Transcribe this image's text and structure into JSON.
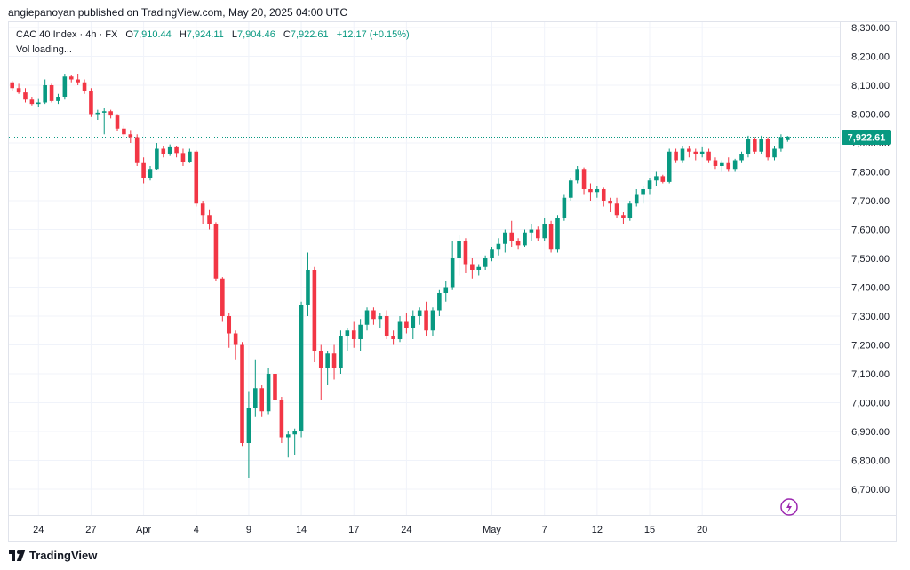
{
  "header": {
    "byline": "angiepanoyan published on TradingView.com, May 20, 2025 04:00 UTC"
  },
  "legend": {
    "symbol": "CAC 40 Index · 4h · FX",
    "open_label": "O",
    "open": "7,910.44",
    "high_label": "H",
    "high": "7,924.11",
    "low_label": "L",
    "low": "7,904.46",
    "close_label": "C",
    "close": "7,922.61",
    "change": "+12.17 (+0.15%)",
    "volume": "Vol loading..."
  },
  "footer": {
    "brand": "TradingView"
  },
  "colors": {
    "up": "#089981",
    "down": "#f23645",
    "grid": "#f0f3fa",
    "text": "#131722",
    "accent": "#9c27b0"
  },
  "icons": {
    "flash": "lightning-icon",
    "logo": "tradingview-logo-icon"
  },
  "chart_data": {
    "type": "candlestick",
    "title": "CAC 40 Index · 4h · FX",
    "yaxis": {
      "ticks": [
        "8,300.00",
        "8,200.00",
        "8,100.00",
        "8,000.00",
        "7,900.00",
        "7,800.00",
        "7,700.00",
        "7,600.00",
        "7,500.00",
        "7,400.00",
        "7,300.00",
        "7,200.00",
        "7,100.00",
        "7,000.00",
        "6,900.00",
        "6,800.00",
        "6,700.00"
      ],
      "tick_values": [
        8300,
        8200,
        8100,
        8000,
        7900,
        7800,
        7700,
        7600,
        7500,
        7400,
        7300,
        7200,
        7100,
        7000,
        6900,
        6800,
        6700
      ],
      "range": [
        6640,
        8335
      ],
      "position": "right"
    },
    "xaxis": {
      "labels": [
        "24",
        "27",
        "Apr",
        "4",
        "9",
        "14",
        "17",
        "24",
        "May",
        "7",
        "12",
        "15",
        "20"
      ],
      "label_bar_index": [
        4,
        12,
        20,
        28,
        36,
        44,
        52,
        60,
        73,
        81,
        89,
        97,
        105
      ]
    },
    "last_price_label": "7,922.61",
    "last_price": 7922.61,
    "candles": [
      [
        8110,
        8115,
        8080,
        8090
      ],
      [
        8090,
        8105,
        8070,
        8075
      ],
      [
        8075,
        8090,
        8040,
        8050
      ],
      [
        8050,
        8060,
        8030,
        8035
      ],
      [
        8035,
        8055,
        8025,
        8040
      ],
      [
        8040,
        8120,
        8035,
        8100
      ],
      [
        8100,
        8105,
        8040,
        8045
      ],
      [
        8045,
        8070,
        8035,
        8060
      ],
      [
        8060,
        8140,
        8050,
        8130
      ],
      [
        8130,
        8135,
        8110,
        8120
      ],
      [
        8120,
        8140,
        8100,
        8110
      ],
      [
        8110,
        8120,
        8070,
        8080
      ],
      [
        8080,
        8090,
        7990,
        8000
      ],
      [
        8000,
        8015,
        7980,
        8005
      ],
      [
        8005,
        8020,
        7930,
        8010
      ],
      [
        8010,
        8015,
        7985,
        7995
      ],
      [
        7995,
        8000,
        7940,
        7950
      ],
      [
        7950,
        7960,
        7920,
        7930
      ],
      [
        7930,
        7945,
        7900,
        7920
      ],
      [
        7920,
        7930,
        7820,
        7830
      ],
      [
        7830,
        7850,
        7760,
        7780
      ],
      [
        7780,
        7820,
        7770,
        7810
      ],
      [
        7810,
        7900,
        7805,
        7880
      ],
      [
        7880,
        7890,
        7850,
        7860
      ],
      [
        7860,
        7895,
        7855,
        7885
      ],
      [
        7885,
        7890,
        7850,
        7865
      ],
      [
        7865,
        7880,
        7820,
        7835
      ],
      [
        7835,
        7880,
        7830,
        7870
      ],
      [
        7870,
        7875,
        7680,
        7690
      ],
      [
        7690,
        7700,
        7620,
        7650
      ],
      [
        7650,
        7670,
        7600,
        7620
      ],
      [
        7620,
        7625,
        7420,
        7430
      ],
      [
        7430,
        7435,
        7280,
        7300
      ],
      [
        7300,
        7310,
        7190,
        7240
      ],
      [
        7240,
        7250,
        7150,
        7200
      ],
      [
        7200,
        7210,
        6850,
        6860
      ],
      [
        6860,
        7040,
        6740,
        6980
      ],
      [
        6980,
        7150,
        6950,
        7050
      ],
      [
        7050,
        7060,
        6950,
        6970
      ],
      [
        6970,
        7120,
        6960,
        7100
      ],
      [
        7100,
        7160,
        6990,
        7010
      ],
      [
        7010,
        7020,
        6860,
        6880
      ],
      [
        6880,
        6900,
        6810,
        6890
      ],
      [
        6890,
        6910,
        6820,
        6900
      ],
      [
        6900,
        7350,
        6880,
        7340
      ],
      [
        7340,
        7520,
        7300,
        7460
      ],
      [
        7460,
        7470,
        7140,
        7180
      ],
      [
        7180,
        7200,
        7010,
        7120
      ],
      [
        7120,
        7180,
        7060,
        7170
      ],
      [
        7170,
        7200,
        7080,
        7120
      ],
      [
        7120,
        7250,
        7100,
        7230
      ],
      [
        7230,
        7260,
        7180,
        7250
      ],
      [
        7250,
        7280,
        7190,
        7220
      ],
      [
        7220,
        7290,
        7180,
        7270
      ],
      [
        7270,
        7330,
        7250,
        7320
      ],
      [
        7320,
        7330,
        7270,
        7290
      ],
      [
        7290,
        7310,
        7260,
        7300
      ],
      [
        7300,
        7320,
        7220,
        7230
      ],
      [
        7230,
        7250,
        7200,
        7220
      ],
      [
        7220,
        7300,
        7210,
        7280
      ],
      [
        7280,
        7310,
        7240,
        7260
      ],
      [
        7260,
        7320,
        7220,
        7300
      ],
      [
        7300,
        7330,
        7270,
        7320
      ],
      [
        7320,
        7350,
        7230,
        7250
      ],
      [
        7250,
        7330,
        7230,
        7320
      ],
      [
        7320,
        7390,
        7300,
        7380
      ],
      [
        7380,
        7420,
        7350,
        7400
      ],
      [
        7400,
        7560,
        7390,
        7500
      ],
      [
        7500,
        7580,
        7440,
        7560
      ],
      [
        7560,
        7570,
        7450,
        7480
      ],
      [
        7480,
        7500,
        7430,
        7460
      ],
      [
        7460,
        7480,
        7440,
        7470
      ],
      [
        7470,
        7510,
        7460,
        7500
      ],
      [
        7500,
        7540,
        7490,
        7530
      ],
      [
        7530,
        7570,
        7510,
        7550
      ],
      [
        7550,
        7600,
        7520,
        7590
      ],
      [
        7590,
        7630,
        7540,
        7560
      ],
      [
        7560,
        7570,
        7530,
        7545
      ],
      [
        7545,
        7600,
        7540,
        7590
      ],
      [
        7590,
        7620,
        7560,
        7600
      ],
      [
        7600,
        7610,
        7560,
        7570
      ],
      [
        7570,
        7640,
        7560,
        7620
      ],
      [
        7620,
        7630,
        7520,
        7530
      ],
      [
        7530,
        7650,
        7520,
        7640
      ],
      [
        7640,
        7720,
        7630,
        7710
      ],
      [
        7710,
        7780,
        7700,
        7770
      ],
      [
        7770,
        7820,
        7760,
        7810
      ],
      [
        7810,
        7815,
        7720,
        7740
      ],
      [
        7740,
        7760,
        7700,
        7730
      ],
      [
        7730,
        7750,
        7710,
        7740
      ],
      [
        7740,
        7745,
        7680,
        7700
      ],
      [
        7700,
        7710,
        7660,
        7690
      ],
      [
        7690,
        7710,
        7640,
        7650
      ],
      [
        7650,
        7660,
        7620,
        7640
      ],
      [
        7640,
        7700,
        7630,
        7690
      ],
      [
        7690,
        7740,
        7680,
        7720
      ],
      [
        7720,
        7750,
        7690,
        7740
      ],
      [
        7740,
        7780,
        7720,
        7770
      ],
      [
        7770,
        7800,
        7750,
        7785
      ],
      [
        7785,
        7790,
        7760,
        7765
      ],
      [
        7765,
        7880,
        7760,
        7870
      ],
      [
        7870,
        7880,
        7830,
        7840
      ],
      [
        7840,
        7890,
        7830,
        7880
      ],
      [
        7880,
        7890,
        7850,
        7870
      ],
      [
        7870,
        7880,
        7840,
        7860
      ],
      [
        7860,
        7885,
        7850,
        7870
      ],
      [
        7870,
        7880,
        7830,
        7840
      ],
      [
        7840,
        7850,
        7810,
        7820
      ],
      [
        7820,
        7840,
        7800,
        7830
      ],
      [
        7830,
        7850,
        7800,
        7810
      ],
      [
        7810,
        7845,
        7800,
        7840
      ],
      [
        7840,
        7870,
        7830,
        7860
      ],
      [
        7860,
        7925,
        7850,
        7915
      ],
      [
        7915,
        7920,
        7860,
        7870
      ],
      [
        7870,
        7925,
        7860,
        7915
      ],
      [
        7915,
        7920,
        7840,
        7850
      ],
      [
        7850,
        7890,
        7840,
        7880
      ],
      [
        7880,
        7930,
        7870,
        7920
      ],
      [
        7910,
        7924,
        7904,
        7922
      ]
    ]
  }
}
